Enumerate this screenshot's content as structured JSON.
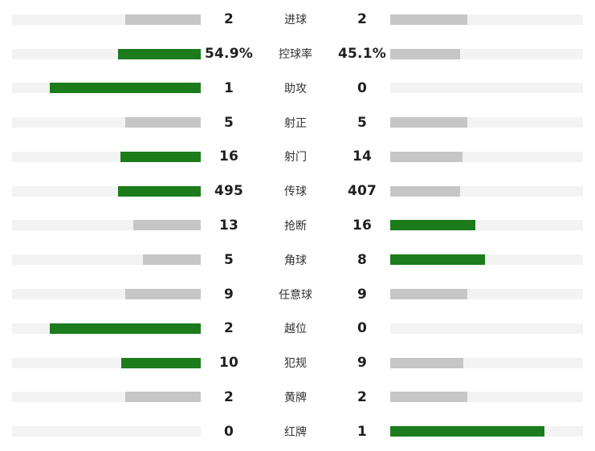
{
  "colors": {
    "win_bar": "#1c7c1c",
    "lose_bar": "#c6c6c6",
    "track": "#f3f3f3",
    "value_text": "#1f1f1f",
    "label_text": "#333333"
  },
  "stats": [
    {
      "label": "进球",
      "left_display": "2",
      "right_display": "2",
      "left_value": 2,
      "right_value": 2
    },
    {
      "label": "控球率",
      "left_display": "54.9%",
      "right_display": "45.1%",
      "left_value": 54.9,
      "right_value": 45.1
    },
    {
      "label": "助攻",
      "left_display": "1",
      "right_display": "0",
      "left_value": 1,
      "right_value": 0
    },
    {
      "label": "射正",
      "left_display": "5",
      "right_display": "5",
      "left_value": 5,
      "right_value": 5
    },
    {
      "label": "射门",
      "left_display": "16",
      "right_display": "14",
      "left_value": 16,
      "right_value": 14
    },
    {
      "label": "传球",
      "left_display": "495",
      "right_display": "407",
      "left_value": 495,
      "right_value": 407
    },
    {
      "label": "抢断",
      "left_display": "13",
      "right_display": "16",
      "left_value": 13,
      "right_value": 16
    },
    {
      "label": "角球",
      "left_display": "5",
      "right_display": "8",
      "left_value": 5,
      "right_value": 8
    },
    {
      "label": "任意球",
      "left_display": "9",
      "right_display": "9",
      "left_value": 9,
      "right_value": 9
    },
    {
      "label": "越位",
      "left_display": "2",
      "right_display": "0",
      "left_value": 2,
      "right_value": 0
    },
    {
      "label": "犯规",
      "left_display": "10",
      "right_display": "9",
      "left_value": 10,
      "right_value": 9
    },
    {
      "label": "黄牌",
      "left_display": "2",
      "right_display": "2",
      "left_value": 2,
      "right_value": 2
    },
    {
      "label": "红牌",
      "left_display": "0",
      "right_display": "1",
      "left_value": 0,
      "right_value": 1
    }
  ],
  "chart_data": {
    "type": "bar",
    "subtype": "bidirectional team comparison bars",
    "title": "",
    "categories": [
      "进球",
      "控球率",
      "助攻",
      "射正",
      "射门",
      "传球",
      "抢断",
      "角球",
      "任意球",
      "越位",
      "犯规",
      "黄牌",
      "红牌"
    ],
    "series": [
      {
        "name": "left-team",
        "values": [
          2,
          54.9,
          1,
          5,
          16,
          495,
          13,
          5,
          9,
          2,
          10,
          2,
          0
        ]
      },
      {
        "name": "right-team",
        "values": [
          2,
          45.1,
          0,
          5,
          14,
          407,
          16,
          8,
          9,
          0,
          9,
          2,
          1
        ]
      }
    ],
    "bar_scale": "bar width = value / (left + right) * 80% of track width; left bars right-anchored, right bars left-anchored",
    "highlight_rule": "higher value rendered green, lower or equal rendered gray; zero renders empty track",
    "legend": "none",
    "grid": false
  }
}
